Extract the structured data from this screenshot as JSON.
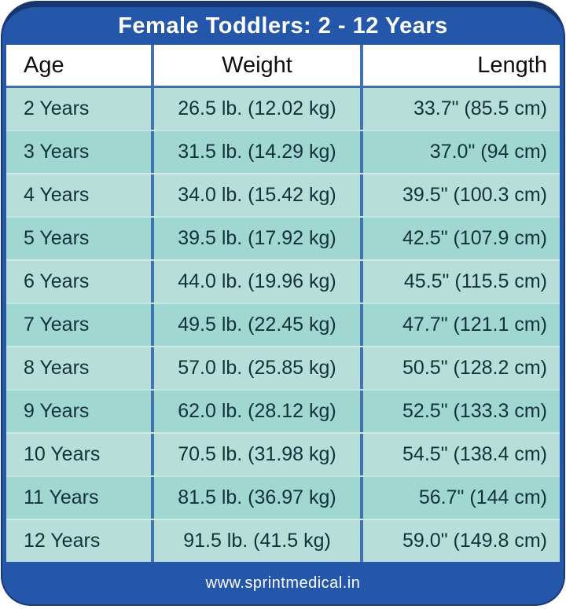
{
  "chart_data": {
    "type": "table",
    "title": "Female Toddlers: 2 - 12 Years",
    "columns": [
      "Age",
      "Weight",
      "Length"
    ],
    "rows": [
      {
        "age": "2 Years",
        "weight": "26.5 lb. (12.02 kg)",
        "length": "33.7\" (85.5 cm)"
      },
      {
        "age": "3 Years",
        "weight": "31.5 lb. (14.29 kg)",
        "length": "37.0\" (94 cm)"
      },
      {
        "age": "4 Years",
        "weight": "34.0 lb. (15.42 kg)",
        "length": "39.5\" (100.3 cm)"
      },
      {
        "age": "5 Years",
        "weight": "39.5 lb. (17.92 kg)",
        "length": "42.5\" (107.9 cm)"
      },
      {
        "age": "6 Years",
        "weight": "44.0 lb. (19.96 kg)",
        "length": "45.5\" (115.5 cm)"
      },
      {
        "age": "7 Years",
        "weight": "49.5 lb. (22.45 kg)",
        "length": "47.7\" (121.1 cm)"
      },
      {
        "age": "8 Years",
        "weight": "57.0 lb. (25.85 kg)",
        "length": "50.5\" (128.2 cm)"
      },
      {
        "age": "9 Years",
        "weight": "62.0 lb. (28.12 kg)",
        "length": "52.5\" (133.3 cm)"
      },
      {
        "age": "10 Years",
        "weight": "70.5 lb. (31.98 kg)",
        "length": "54.5\" (138.4 cm)"
      },
      {
        "age": "11 Years",
        "weight": "81.5 lb. (36.97 kg)",
        "length": "56.7\" (144 cm)"
      },
      {
        "age": "12 Years",
        "weight": "91.5 lb. (41.5 kg)",
        "length": "59.0\" (149.8 cm)"
      }
    ],
    "layout": {
      "legend": "none",
      "grid": "column dividers and alternating row bands"
    }
  },
  "footer": {
    "website": "www.sprintmedical.in"
  },
  "colors": {
    "card_blue": "#2456a9",
    "edge_navy": "#17356e",
    "row_light_teal": "#b7ded9",
    "row_dark_teal": "#a0d7d1",
    "divider_blue": "#4273b1",
    "header_bg": "#ffffff",
    "title_text": "#ffffff",
    "data_text": "#14313a"
  }
}
